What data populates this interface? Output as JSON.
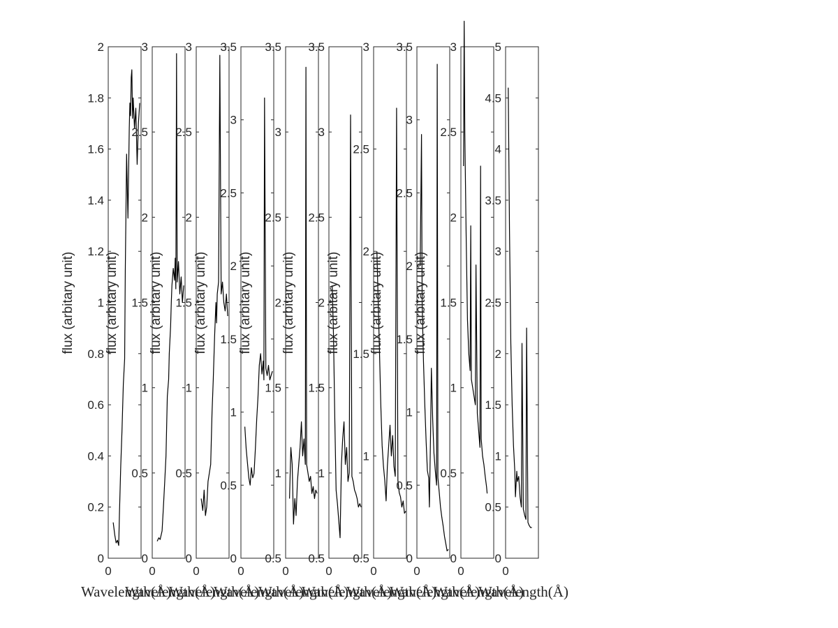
{
  "chart_data": [
    {
      "type": "line",
      "ylim": [
        0,
        2
      ],
      "yticks": [
        "0",
        "0.2",
        "0.4",
        "0.6",
        "0.8",
        "1",
        "1.2",
        "1.4",
        "1.6",
        "1.8",
        "2"
      ],
      "xticks": [
        "0"
      ],
      "ylabel": "flux (arbitary unit)",
      "xlabel": "Wavelength(Å)",
      "x": [
        0.15,
        0.2,
        0.24,
        0.28,
        0.32,
        0.34,
        0.38,
        0.42,
        0.46,
        0.5,
        0.52,
        0.56,
        0.6,
        0.64,
        0.66,
        0.68,
        0.7,
        0.72,
        0.74,
        0.76,
        0.8,
        0.84,
        0.88,
        0.92,
        0.96
      ],
      "y": [
        0.14,
        0.09,
        0.06,
        0.07,
        0.05,
        0.17,
        0.36,
        0.5,
        0.68,
        0.78,
        1.12,
        1.58,
        1.33,
        1.68,
        1.78,
        1.73,
        1.88,
        1.91,
        1.72,
        1.8,
        1.68,
        1.76,
        1.54,
        1.7,
        1.78
      ],
      "grid": false
    },
    {
      "type": "line",
      "ylim": [
        0,
        3
      ],
      "yticks": [
        "0",
        "0.5",
        "1",
        "1.5",
        "2",
        "2.5",
        "3"
      ],
      "xticks": [
        "0"
      ],
      "ylabel": "flux (arbitary unit)",
      "xlabel": "Wavelength(Å)",
      "x": [
        0.15,
        0.2,
        0.24,
        0.3,
        0.34,
        0.38,
        0.42,
        0.46,
        0.5,
        0.52,
        0.56,
        0.58,
        0.6,
        0.64,
        0.68,
        0.7,
        0.72,
        0.74,
        0.76,
        0.8,
        0.84,
        0.88,
        0.92,
        0.96
      ],
      "y": [
        0.1,
        0.12,
        0.11,
        0.16,
        0.3,
        0.45,
        0.6,
        0.95,
        1.05,
        1.2,
        1.36,
        1.5,
        1.6,
        1.7,
        1.63,
        1.76,
        1.58,
        2.96,
        1.62,
        1.74,
        1.55,
        1.65,
        1.5,
        1.6
      ],
      "grid": false
    },
    {
      "type": "line",
      "ylim": [
        0,
        3
      ],
      "yticks": [
        "0",
        "0.5",
        "1",
        "1.5",
        "2",
        "2.5",
        "3"
      ],
      "xticks": [
        "0"
      ],
      "ylabel": "flux (arbitary unit)",
      "xlabel": "Wavelength(Å)",
      "x": [
        0.15,
        0.2,
        0.24,
        0.28,
        0.32,
        0.36,
        0.4,
        0.44,
        0.48,
        0.52,
        0.56,
        0.6,
        0.62,
        0.64,
        0.68,
        0.72,
        0.76,
        0.8,
        0.84,
        0.88,
        0.92,
        0.96
      ],
      "y": [
        0.35,
        0.28,
        0.4,
        0.25,
        0.3,
        0.45,
        0.5,
        0.55,
        0.85,
        1.05,
        1.3,
        1.5,
        1.38,
        1.55,
        1.62,
        2.95,
        1.55,
        1.62,
        1.5,
        1.45,
        1.55,
        1.42
      ],
      "grid": false
    },
    {
      "type": "line",
      "ylim": [
        0,
        3.5
      ],
      "yticks": [
        "0",
        "0.5",
        "1",
        "1.5",
        "2",
        "2.5",
        "3",
        "3.5"
      ],
      "xticks": [
        "0"
      ],
      "ylabel": "flux (arbitary unit)",
      "xlabel": "Wavelength(Å)",
      "x": [
        0.12,
        0.16,
        0.2,
        0.24,
        0.28,
        0.32,
        0.36,
        0.4,
        0.44,
        0.48,
        0.52,
        0.56,
        0.6,
        0.64,
        0.68,
        0.7,
        0.72,
        0.76,
        0.8,
        0.84,
        0.88,
        0.92,
        0.96
      ],
      "y": [
        0.9,
        0.75,
        0.65,
        0.55,
        0.5,
        0.62,
        0.55,
        0.58,
        0.75,
        0.95,
        1.1,
        1.32,
        1.4,
        1.26,
        1.35,
        1.22,
        3.15,
        1.3,
        1.25,
        1.32,
        1.22,
        1.25,
        1.28
      ],
      "grid": false
    },
    {
      "type": "line",
      "ylim": [
        0.5,
        3.5
      ],
      "yticks": [
        "0.5",
        "1",
        "1.5",
        "2",
        "2.5",
        "3",
        "3.5"
      ],
      "xticks": [
        "0"
      ],
      "ylabel": "flux (arbitary unit)",
      "xlabel": "Wavelength(Å)",
      "x": [
        0.12,
        0.16,
        0.2,
        0.24,
        0.28,
        0.32,
        0.36,
        0.4,
        0.44,
        0.48,
        0.52,
        0.56,
        0.6,
        0.62,
        0.64,
        0.68,
        0.72,
        0.76,
        0.8,
        0.84,
        0.88,
        0.92,
        0.96
      ],
      "y": [
        0.85,
        1.15,
        1.05,
        0.7,
        0.85,
        0.75,
        0.95,
        1.05,
        1.15,
        1.3,
        1.1,
        1.2,
        1.05,
        3.38,
        1.05,
        1.0,
        0.95,
        0.98,
        0.88,
        0.92,
        0.85,
        0.9,
        0.88
      ],
      "grid": false
    },
    {
      "type": "line",
      "ylim": [
        0.5,
        3.5
      ],
      "yticks": [
        "0.5",
        "1",
        "1.5",
        "2",
        "2.5",
        "3",
        "3.5"
      ],
      "xticks": [
        "0"
      ],
      "ylabel": "flux (arbitary unit)",
      "xlabel": "Wavelength(Å)",
      "x": [
        0.1,
        0.14,
        0.18,
        0.22,
        0.26,
        0.3,
        0.34,
        0.38,
        0.42,
        0.46,
        0.5,
        0.54,
        0.58,
        0.62,
        0.66,
        0.7,
        0.74,
        0.78,
        0.82,
        0.86,
        0.9,
        0.94,
        0.98
      ],
      "y": [
        2.1,
        1.8,
        1.3,
        0.9,
        0.82,
        0.72,
        0.62,
        1.05,
        1.2,
        1.3,
        1.05,
        1.15,
        0.95,
        1.0,
        3.1,
        0.98,
        0.95,
        0.9,
        0.88,
        0.85,
        0.8,
        0.82,
        0.8
      ],
      "grid": false
    },
    {
      "type": "line",
      "ylim": [
        0.5,
        3
      ],
      "yticks": [
        "0.5",
        "1",
        "1.5",
        "2",
        "2.5",
        "3"
      ],
      "xticks": [
        "0"
      ],
      "ylabel": "flux (arbitary unit)",
      "xlabel": "Wavelength(Å)",
      "x": [
        0.1,
        0.14,
        0.18,
        0.22,
        0.26,
        0.3,
        0.34,
        0.38,
        0.42,
        0.46,
        0.5,
        0.54,
        0.58,
        0.62,
        0.66,
        0.7,
        0.74,
        0.78,
        0.82,
        0.86,
        0.9,
        0.94,
        0.98
      ],
      "y": [
        2.0,
        1.75,
        1.5,
        1.25,
        1.05,
        0.95,
        0.88,
        0.78,
        0.95,
        1.05,
        1.15,
        1.0,
        1.1,
        0.95,
        0.9,
        2.7,
        0.88,
        0.82,
        0.8,
        0.75,
        0.78,
        0.72,
        0.73
      ],
      "grid": false
    },
    {
      "type": "line",
      "ylim": [
        0,
        3.5
      ],
      "yticks": [
        "0",
        "0.5",
        "1",
        "1.5",
        "2",
        "2.5",
        "3",
        "3.5"
      ],
      "xticks": [
        "0"
      ],
      "ylabel": "flux (arbitary unit)",
      "xlabel": "Wavelength(Å)",
      "x": [
        0.1,
        0.14,
        0.16,
        0.2,
        0.24,
        0.28,
        0.32,
        0.36,
        0.38,
        0.42,
        0.44,
        0.48,
        0.52,
        0.56,
        0.6,
        0.62,
        0.64,
        0.68,
        0.72,
        0.76,
        0.8,
        0.84,
        0.88,
        0.92,
        0.96
      ],
      "y": [
        2.0,
        2.9,
        1.75,
        1.35,
        1.05,
        0.8,
        0.6,
        0.55,
        0.35,
        0.9,
        1.3,
        0.95,
        0.72,
        0.6,
        0.5,
        3.38,
        0.55,
        0.45,
        0.35,
        0.28,
        0.22,
        0.15,
        0.1,
        0.05,
        0.06
      ],
      "grid": false
    },
    {
      "type": "line",
      "ylim": [
        0,
        3
      ],
      "yticks": [
        "0",
        "0.5",
        "1",
        "1.5",
        "2",
        "2.5",
        "3"
      ],
      "xticks": [
        "0"
      ],
      "ylabel": "flux (arbitary unit)",
      "xlabel": "Wavelength(Å)",
      "x": [
        0.08,
        0.1,
        0.12,
        0.16,
        0.2,
        0.24,
        0.28,
        0.3,
        0.32,
        0.36,
        0.4,
        0.44,
        0.46,
        0.5,
        0.54,
        0.58,
        0.6,
        0.62,
        0.66,
        0.7,
        0.74,
        0.78,
        0.8
      ],
      "y": [
        2.3,
        3.15,
        2.5,
        1.9,
        1.4,
        1.2,
        1.1,
        1.95,
        1.05,
        1.0,
        0.95,
        0.9,
        1.72,
        0.85,
        0.75,
        0.65,
        2.3,
        0.7,
        0.6,
        0.55,
        0.48,
        0.42,
        0.38
      ],
      "grid": false
    },
    {
      "type": "line",
      "ylim": [
        0,
        5
      ],
      "yticks": [
        "0",
        "0.5",
        "1",
        "1.5",
        "2",
        "2.5",
        "3",
        "3.5",
        "4",
        "4.5",
        "5"
      ],
      "xticks": [
        "0"
      ],
      "ylabel": "",
      "xlabel": "Wavelength(Å)",
      "x": [
        0.08,
        0.12,
        0.16,
        0.2,
        0.24,
        0.28,
        0.3,
        0.34,
        0.36,
        0.4,
        0.44,
        0.48,
        0.5,
        0.54,
        0.58,
        0.62,
        0.64,
        0.68,
        0.72,
        0.76,
        0.8
      ],
      "y": [
        4.6,
        3.2,
        2.1,
        1.5,
        1.1,
        0.85,
        0.6,
        0.85,
        0.75,
        0.8,
        0.6,
        0.5,
        2.1,
        0.48,
        0.42,
        0.38,
        2.25,
        0.35,
        0.32,
        0.3,
        0.3
      ],
      "grid": false
    }
  ]
}
